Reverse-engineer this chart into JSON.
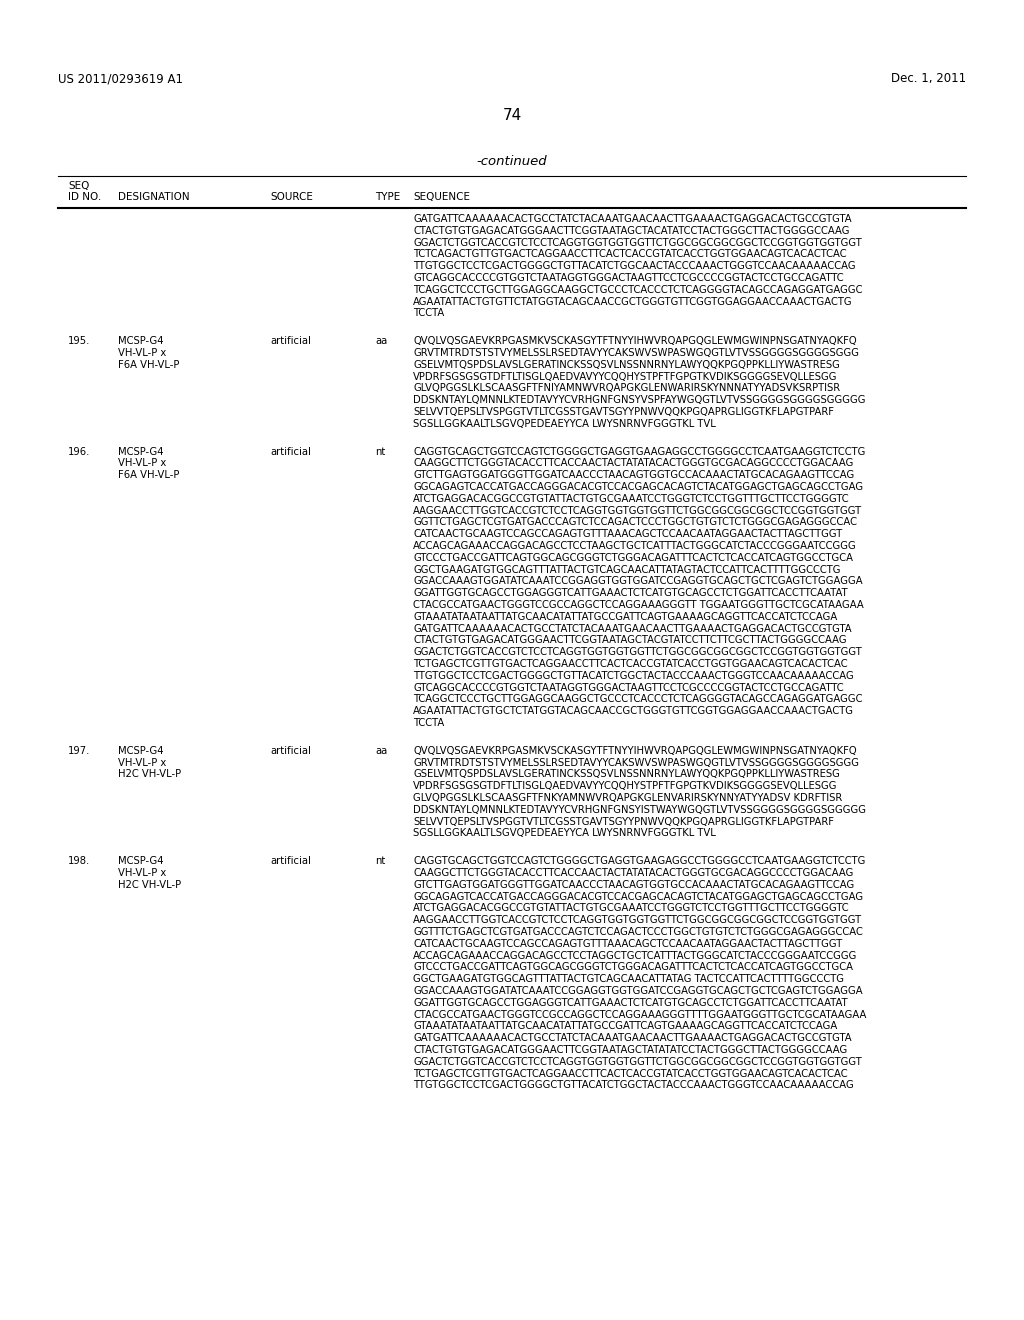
{
  "header_left": "US 2011/0293619 A1",
  "header_right": "Dec. 1, 2011",
  "page_number": "74",
  "continued_text": "-continued",
  "background_color": "#ffffff",
  "text_color": "#000000",
  "entry0_seq": [
    "GATGATTCAAAAAACACTGCCTATCTACAAATGAACAACTTGAAAACTGAGGACACTGCCGTGTA",
    "CTACTGTGTGAGACATGGGAACTTCGGTAATAGCTACATATCCTACTGGGCTTACTGGGGCCAAG",
    "GGACTCTGGTCACCGTCTCCTCAGGTGGTGGTGGTTCTGGCGGCGGCGGCTCCGGTGGTGGTGGT",
    "TCTCAGACTGTTGTGACTCAGGAACCTTCACTCACCGTATCACCTGGTGGAACAGTCACACTCAC",
    "TTGTGGCTCCTCGACTGGGGCTGTTACATCTGGCAACTACCCAAACTGGGTCCAACAAAAACCAG",
    "GTCAGGCACCCCGTGGTCTAATAGGTGGGACTAAGTTCCTCGCCCCGGTACTCCTGCCAGATTC",
    "TCAGGCTCCCTGCTTGGAGGCAAGGCTGCCCTCACCCTCTCAGGGGTACAGCCAGAGGATGAGGC",
    "AGAATATTACTGTGTTCTATGGTACAGCAACCGCTGGGTGTTCGGTGGAGGAACCAAACTGACTG",
    "TCCTA"
  ],
  "entries": [
    {
      "id": "195.",
      "desig1": "MCSP-G4",
      "desig2": "VH-VL-P x",
      "desig3": "F6A VH-VL-P",
      "source": "artificial",
      "type": "aa",
      "seq": [
        "QVQLVQSGAEVKRPGASMKVSCKASGYTFTNYYIHWVRQAPGQGLEWMGWINPNSGATNYAQKFQ",
        "GRVTMTRDTSTSTVYMELSSLRSEDTAVYYCAKSWVSWPASWGQGTLVTVSSGGGGSGGGGSGGG",
        "GSELVMTQSPDSLAVSLGERATINCKSSQSVLNSSNNRNYLAWYQQKPGQPPKLLIYWASTRESG",
        "VPDRFSGSGSGTDFTLTISGLQAEDVAVYYCQQHYSTPFTFGPGTKVDIKSGGGGSEVQLLESGG",
        "GLVQPGGSLKLSCAASGFTFNIYAMNWVRQAPGKGLENWARIRSKYNNNATYYADSVKSRPTISR",
        "DDSKNTAYLQMNNLKTEDTAVYYCVRHGNFGNSYVSPFAYWGQGTLVTVSSGGGGSGGGGSGGGGG",
        "SELVVTQEPSLTVSPGGTVTLTCGSSTGAVTSGYYPNWVQQKPGQAPRGLIGGTKFLAPGTPARF",
        "SGSLLGGKAALTLSGVQPEDEAEYYCA LWYSNRNVFGGGTKL TVL"
      ]
    },
    {
      "id": "196.",
      "desig1": "MCSP-G4",
      "desig2": "VH-VL-P x",
      "desig3": "F6A VH-VL-P",
      "source": "artificial",
      "type": "nt",
      "seq": [
        "CAGGTGCAGCTGGTCCAGTCTGGGGCTGAGGTGAAGAGGCCTGGGGCCTCAATGAAGGTCTCCTG",
        "CAAGGCTTCTGGGTACACCTTCACCAACTACTATATACACTGGGTGCGACAGGCCCCTGGACAAG",
        "GTCTTGAGTGGATGGGTTGGATCAACCCTAACAGTGGTGCCACAAACTATGCACAGAAGTTCCAG",
        "GGCAGAGTCACCATGACCAGGGACACGTCCACGAGCACAGTCTACATGGAGCTGAGCAGCCTGAG",
        "ATCTGAGGACACGGCCGTGTATTACTGTGCGAAATCCTGGGTCTCCTGGTTTGCTTCCTGGGGTC",
        "AAGGAACCTTGGTCACCGTCTCCTCAGGTGGTGGTGGTTCTGGCGGCGGCGGCTCCGGTGGTGGT",
        "GGTTCTGAGCTCGTGATGACCCAGTCTCCAGACTCCCTGGCTGTGTCTCTGGGCGAGAGGGCCAC",
        "CATCAACTGCAAGTCCAGCCAGAGTGTTTAAACAGCTCCAACAATAGGAACTACTTAGCTTGGT",
        "ACCAGCAGAAACCAGGACAGCCTCCTAAGCTGCTCATTTACTGGGCATCTACCCGGGAATCCGGG",
        "GTCCCTGACCGATTCAGTGGCAGCGGGTCTGGGACAGATTTCACTCTCACCATCAGTGGCCTGCA",
        "GGCTGAAGATGTGGCAGTTTATTACTGTCAGCAACATTATAGTACTCCATTCACTTTTGGCCCTG",
        "GGACCAAAGTGGATATCAAATCCGGAGGTGGTGGATCCGAGGTGCAGCTGCTCGAGTCTGGAGGA",
        "GGATTGGTGCAGCCTGGAGGGTCATTGAAACTCTCATGTGCAGCCTCTGGATTCACCTTCAATAT",
        "CTACGCCATGAACTGGGTCCGCCAGGCTCCAGGAAAGGGTT TGGAATGGGTTGCTCGCATAAGAA",
        "GTAAATATAATAATTATGCAACATATTATGCCGATTCAGTGAAAAGCAGGTTCACCATCTCCAGA",
        "GATGATTCAAAAAACACTGCCTATCTACAAATGAACAACTTGAAAACTGAGGACACTGCCGTGTA",
        "CTACTGTGTGAGACATGGGAACTTCGGTAATAGCTACGTATCCTTCTTCGCTTACTGGGGCCAAG",
        "GGACTCTGGTCACCGTCTCCTCAGGTGGTGGTGGTTCTGGCGGCGGCGGCTCCGGTGGTGGTGGT",
        "TCTGAGCTCGTTGTGACTCAGGAACCTTCACTCACCGTATCACCTGGTGGAACAGTCACACTCAC",
        "TTGTGGCTCCTCGACTGGGGCTGTTACATCTGGCTACTACCCAAACTGGGTCCAACAAAAACCAG",
        "GTCAGGCACCCCGTGGTCTAATAGGTGGGACTAAGTTCCTCGCCCCGGTACTCCTGCCAGATTC",
        "TCAGGCTCCCTGCTTGGAGGCAAGGCTGCCCTCACCCTCTCAGGGGTACAGCCAGAGGATGAGGC",
        "AGAATATTACTGTGCTCTATGGTACAGCAACCGCTGGGTGTTCGGTGGAGGAACCAAACTGACTG",
        "TCCTA"
      ]
    },
    {
      "id": "197.",
      "desig1": "MCSP-G4",
      "desig2": "VH-VL-P x",
      "desig3": "H2C VH-VL-P",
      "source": "artificial",
      "type": "aa",
      "seq": [
        "QVQLVQSGAEVKRPGASMKVSCKASGYTFTNYYIHWVRQAPGQGLEWMGWINPNSGATNYAQKFQ",
        "GRVTMTRDTSTSTVYMELSSLRSEDTAVYYCAKSWVSWPASWGQGTLVTVSSGGGGSGGGGSGGG",
        "GSELVMTQSPDSLAVSLGERATINCKSSQSVLNSSNNRNYLAWYQQKPGQPPKLLIYWASTRESG",
        "VPDRFSGSGSGTDFTLTISGLQAEDVAVYYCQQHYSTPFTFGPGTKVDIKSGGGGSEVQLLESGG",
        "GLVQPGGSLKLSCAASGFTFNKYAMNWVRQAPGKGLENVARIRSKYNNYATYYADSV KDRFTISR",
        "DDSKNTAYLQMNNLKTEDTAVYYCVRHGNFGNSYISTWAYWGQGTLVTVSSGGGGSGGGGSGGGGG",
        "SELVVTQEPSLTVSPGGTVTLTCGSSTGAVTSGYYPNWVQQKPGQAPRGLIGGTKFLAPGTPARF",
        "SGSLLGGKAALTLSGVQPEDEAEYYCA LWYSNRNVFGGGTKL TVL"
      ]
    },
    {
      "id": "198.",
      "desig1": "MCSP-G4",
      "desig2": "VH-VL-P x",
      "desig3": "H2C VH-VL-P",
      "source": "artificial",
      "type": "nt",
      "seq": [
        "CAGGTGCAGCTGGTCCAGTCTGGGGCTGAGGTGAAGAGGCCTGGGGCCTCAATGAAGGTCTCCTG",
        "CAAGGCTTCTGGGTACACCTTCACCAACTACTATATACACTGGGTGCGACAGGCCCCTGGACAAG",
        "GTCTTGAGTGGATGGGTTGGATCAACCCTAACAGTGGTGCCACAAACTATGCACAGAAGTTCCAG",
        "GGCAGAGTCACCATGACCAGGGACACGTCCACGAGCACAGTCTACATGGAGCTGAGCAGCCTGAG",
        "ATCTGAGGACACGGCCGTGTATTACTGTGCGAAATCCTGGGTCTCCTGGTTTGCTTCCTGGGGTC",
        "AAGGAACCTTGGTCACCGTCTCCTCAGGTGGTGGTGGTTCTGGCGGCGGCGGCTCCGGTGGTGGT",
        "GGTTTCTGAGCTCGTGATGACCCAGTCTCCAGACTCCCTGGCTGTGTCTCTGGGCGAGAGGGCCAC",
        "CATCAACTGCAAGTCCAGCCAGAGTGTTTAAACAGCTCCAACAATAGGAACTACTTAGCTTGGT",
        "ACCAGCAGAAACCAGGACAGCCTCCTAGGCTGCTCATTTACTGGGCATCTACCCGGGAATCCGGG",
        "GTCCCTGACCGATTCAGTGGCAGCGGGTCTGGGACAGATTTCACTCTCACCATCAGTGGCCTGCA",
        "GGCTGAAGATGTGGCAGTTTATTACTGTCAGCAACATTATAG TACTCCATTCACTTTTGGCCCTG",
        "GGACCAAAGTGGATATCAAATCCGGAGGTGGTGGATCCGAGGTGCAGCTGCTCGAGTCTGGAGGA",
        "GGATTGGTGCAGCCTGGAGGGTCATTGAAACTCTCATGTGCAGCCTCTGGATTCACCTTCAATAT",
        "CTACGCCATGAACTGGGTCCGCCAGGCTCCAGGAAAGGGTTTTGGAATGGGTTGCTCGCATAAGAA",
        "GTAAATATAATAATTATGCAACATATTATGCCGATTCAGTGAAAAGCAGGTTCACCATCTCCAGA",
        "GATGATTCAAAAAACACTGCCTATCTACAAATGAACAACTTGAAAACTGAGGACACTGCCGTGTA",
        "CTACTGTGTGAGACATGGGAACTTCGGTAATAGCTATATATCCTACTGGGCTTACTGGGGCCAAG",
        "GGACTCTGGTCACCGTCTCCTCAGGTGGTGGTGGTTCTGGCGGCGGCGGCTCCGGTGGTGGTGGT",
        "TCTGAGCTCGTTGTGACTCAGGAACCTTCACTCACCGTATCACCTGGTGGAACAGTCACACTCAC",
        "TTGTGGCTCCTCGACTGGGGCTGTTACATCTGGCTACTACCCAAACTGGGTCCAACAAAAACCAG"
      ]
    }
  ]
}
